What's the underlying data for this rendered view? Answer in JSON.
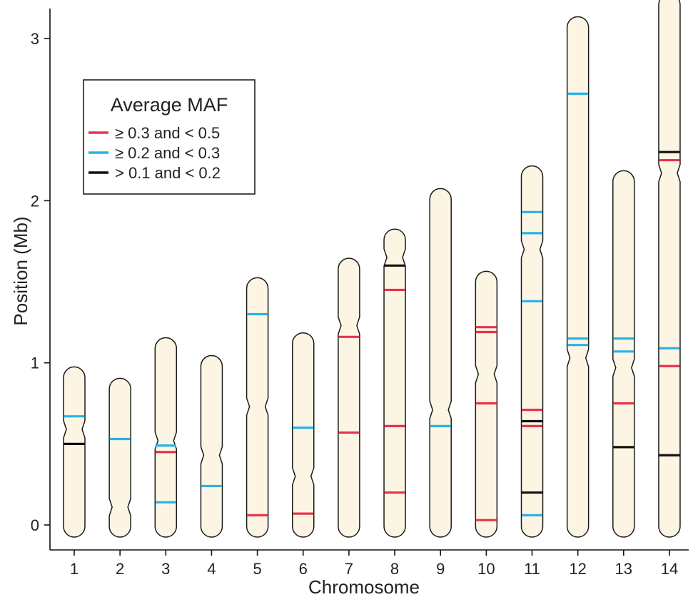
{
  "chart_data": {
    "type": "ideogram",
    "xlabel": "Chromosome",
    "ylabel": "Position (Mb)",
    "ylim": [
      -0.16,
      3.2
    ],
    "y_ticks": [
      "0",
      "1",
      "2",
      "3"
    ],
    "legend": {
      "title": "Average MAF",
      "placement": "top-left",
      "entries": [
        {
          "label": "≥ 0.3 and < 0.5",
          "color": "#e8334a"
        },
        {
          "label": "≥ 0.2 and < 0.3",
          "color": "#25b3e8"
        },
        {
          "label": "> 0.1 and < 0.2",
          "color": "#111111"
        }
      ]
    },
    "chromosomes": [
      {
        "label": "1",
        "length": 0.9,
        "centromere": 0.59,
        "markers": [
          {
            "pos": 0.67,
            "class": 1
          },
          {
            "pos": 0.5,
            "class": 2
          }
        ]
      },
      {
        "label": "2",
        "length": 0.83,
        "centromere": 0.11,
        "markers": [
          {
            "pos": 0.53,
            "class": 1
          }
        ]
      },
      {
        "label": "3",
        "length": 1.08,
        "centromere": 0.52,
        "markers": [
          {
            "pos": 0.49,
            "class": 1
          },
          {
            "pos": 0.45,
            "class": 0
          },
          {
            "pos": 0.14,
            "class": 1
          }
        ]
      },
      {
        "label": "4",
        "length": 0.97,
        "centromere": 0.43,
        "markers": [
          {
            "pos": 0.24,
            "class": 1
          }
        ]
      },
      {
        "label": "5",
        "length": 1.45,
        "centromere": 0.73,
        "markers": [
          {
            "pos": 1.3,
            "class": 1
          },
          {
            "pos": 0.06,
            "class": 0
          }
        ]
      },
      {
        "label": "6",
        "length": 1.11,
        "centromere": 0.3,
        "markers": [
          {
            "pos": 0.6,
            "class": 1
          },
          {
            "pos": 0.07,
            "class": 0
          }
        ]
      },
      {
        "label": "7",
        "length": 1.57,
        "centromere": 1.23,
        "markers": [
          {
            "pos": 1.16,
            "class": 0
          },
          {
            "pos": 0.57,
            "class": 0
          }
        ]
      },
      {
        "label": "8",
        "length": 1.75,
        "centromere": 1.65,
        "markers": [
          {
            "pos": 1.6,
            "class": 2
          },
          {
            "pos": 1.45,
            "class": 0
          },
          {
            "pos": 0.61,
            "class": 0
          },
          {
            "pos": 0.2,
            "class": 0
          }
        ]
      },
      {
        "label": "9",
        "length": 2.0,
        "centromere": 0.71,
        "markers": [
          {
            "pos": 0.61,
            "class": 1
          }
        ]
      },
      {
        "label": "10",
        "length": 1.49,
        "centromere": 0.93,
        "markers": [
          {
            "pos": 1.22,
            "class": 0
          },
          {
            "pos": 1.19,
            "class": 0
          },
          {
            "pos": 0.75,
            "class": 0
          },
          {
            "pos": 0.03,
            "class": 0
          }
        ]
      },
      {
        "label": "11",
        "length": 2.14,
        "centromere": 1.7,
        "markers": [
          {
            "pos": 1.93,
            "class": 1
          },
          {
            "pos": 1.8,
            "class": 1
          },
          {
            "pos": 1.38,
            "class": 1
          },
          {
            "pos": 0.71,
            "class": 0
          },
          {
            "pos": 0.64,
            "class": 2
          },
          {
            "pos": 0.61,
            "class": 0
          },
          {
            "pos": 0.2,
            "class": 2
          },
          {
            "pos": 0.06,
            "class": 1
          }
        ]
      },
      {
        "label": "12",
        "length": 3.06,
        "centromere": 1.03,
        "markers": [
          {
            "pos": 2.66,
            "class": 1
          },
          {
            "pos": 1.15,
            "class": 1
          },
          {
            "pos": 1.11,
            "class": 1
          }
        ]
      },
      {
        "label": "13",
        "length": 2.11,
        "centromere": 0.97,
        "markers": [
          {
            "pos": 1.15,
            "class": 1
          },
          {
            "pos": 1.07,
            "class": 1
          },
          {
            "pos": 0.75,
            "class": 0
          },
          {
            "pos": 0.48,
            "class": 2
          }
        ]
      },
      {
        "label": "14",
        "length": 3.2,
        "centromere": 2.17,
        "markers": [
          {
            "pos": 2.3,
            "class": 2
          },
          {
            "pos": 2.25,
            "class": 0
          },
          {
            "pos": 1.09,
            "class": 1
          },
          {
            "pos": 0.98,
            "class": 0
          },
          {
            "pos": 0.43,
            "class": 2
          }
        ]
      }
    ]
  }
}
